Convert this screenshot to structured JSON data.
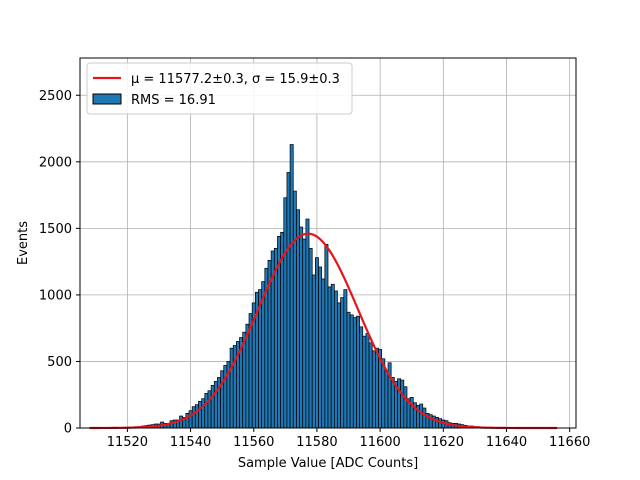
{
  "chart_data": {
    "type": "bar",
    "xlabel": "Sample Value [ADC Counts]",
    "ylabel": "Events",
    "xlim": [
      11505,
      11662
    ],
    "ylim": [
      0,
      2780
    ],
    "xticks": [
      11520,
      11540,
      11560,
      11580,
      11600,
      11620,
      11640,
      11660
    ],
    "yticks": [
      0,
      500,
      1000,
      1500,
      2000,
      2500
    ],
    "grid": true,
    "legend_position": "top-left",
    "legend": [
      {
        "label": "μ = 11577.2±0.3, σ = 15.9±0.3",
        "type": "line",
        "color": "#e8141b"
      },
      {
        "label": "RMS = 16.91",
        "type": "patch",
        "color": "#1f77b4"
      }
    ],
    "histogram": {
      "name": "RMS = 16.91",
      "color": "#1f77b4",
      "edgecolor": "#000000",
      "bin_width": 1,
      "x": [
        11520,
        11521,
        11522,
        11523,
        11524,
        11525,
        11526,
        11527,
        11528,
        11529,
        11530,
        11531,
        11532,
        11533,
        11534,
        11535,
        11536,
        11537,
        11538,
        11539,
        11540,
        11541,
        11542,
        11543,
        11544,
        11545,
        11546,
        11547,
        11548,
        11549,
        11550,
        11551,
        11552,
        11553,
        11554,
        11555,
        11556,
        11557,
        11558,
        11559,
        11560,
        11561,
        11562,
        11563,
        11564,
        11565,
        11566,
        11567,
        11568,
        11569,
        11570,
        11571,
        11572,
        11573,
        11574,
        11575,
        11576,
        11577,
        11578,
        11579,
        11580,
        11581,
        11582,
        11583,
        11584,
        11585,
        11586,
        11587,
        11588,
        11589,
        11590,
        11591,
        11592,
        11593,
        11594,
        11595,
        11596,
        11597,
        11598,
        11599,
        11600,
        11601,
        11602,
        11603,
        11604,
        11605,
        11606,
        11607,
        11608,
        11609,
        11610,
        11611,
        11612,
        11613,
        11614,
        11615,
        11616,
        11617,
        11618,
        11619,
        11620,
        11621,
        11622,
        11623,
        11624,
        11625,
        11626,
        11627,
        11628,
        11629,
        11630,
        11631,
        11632,
        11633,
        11634,
        11635,
        11636,
        11637,
        11638,
        11639,
        11640
      ],
      "values": [
        5,
        5,
        8,
        10,
        10,
        15,
        18,
        22,
        25,
        30,
        30,
        45,
        35,
        35,
        55,
        60,
        60,
        90,
        80,
        110,
        130,
        160,
        175,
        200,
        220,
        260,
        280,
        320,
        350,
        380,
        430,
        470,
        500,
        600,
        620,
        650,
        680,
        720,
        780,
        860,
        940,
        1020,
        1040,
        1100,
        1200,
        1260,
        1330,
        1350,
        1440,
        1470,
        1730,
        1920,
        2130,
        1780,
        1640,
        1510,
        1420,
        1570,
        1350,
        1150,
        1280,
        1210,
        1120,
        1380,
        1060,
        1080,
        1030,
        940,
        980,
        1040,
        870,
        850,
        830,
        840,
        760,
        690,
        710,
        640,
        580,
        600,
        590,
        520,
        430,
        490,
        380,
        350,
        370,
        360,
        310,
        220,
        230,
        190,
        170,
        180,
        150,
        110,
        100,
        90,
        80,
        70,
        60,
        55,
        40,
        35,
        35,
        30,
        25,
        20,
        15,
        15,
        10,
        10,
        8,
        8,
        5,
        5,
        5,
        5,
        3,
        3,
        2
      ]
    },
    "fit": {
      "name": "μ = 11577.2±0.3, σ = 15.9±0.3",
      "mu": 11577.2,
      "sigma": 15.9,
      "amplitude": 1460,
      "x_range": [
        11508,
        11656
      ],
      "color": "#e8141b"
    }
  }
}
